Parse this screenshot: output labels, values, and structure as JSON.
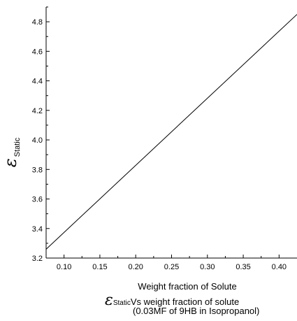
{
  "chart_data": {
    "type": "line",
    "xlabel": "Weight fraction of Solute",
    "ylabel_symbol": "ε",
    "ylabel_subscript": "Static",
    "caption": {
      "symbol": "ε",
      "subscript": "Static",
      "line1": "Vs weight fraction of solute",
      "line2": "(0.03MF of 9HB in Isopropanol)"
    },
    "xlim": [
      0.075,
      0.425
    ],
    "ylim": [
      3.2,
      4.9
    ],
    "x_ticks": [
      0.1,
      0.15,
      0.2,
      0.25,
      0.3,
      0.35,
      0.4
    ],
    "x_tick_labels": [
      "0.10",
      "0.15",
      "0.20",
      "0.25",
      "0.30",
      "0.35",
      "0.40"
    ],
    "y_ticks": [
      3.2,
      3.4,
      3.6,
      3.8,
      4.0,
      4.2,
      4.4,
      4.6,
      4.8
    ],
    "y_tick_labels": [
      "3.2",
      "3.4",
      "3.6",
      "3.8",
      "4.0",
      "4.2",
      "4.4",
      "4.6",
      "4.8"
    ],
    "series": [
      {
        "x": [
          0.075,
          0.425
        ],
        "y": [
          3.26,
          4.85
        ]
      }
    ],
    "grid": false
  }
}
